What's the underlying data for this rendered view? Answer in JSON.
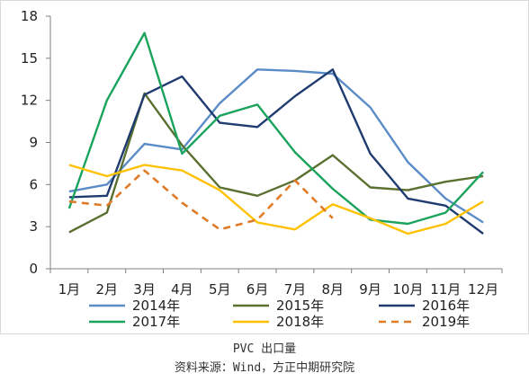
{
  "chart_data": {
    "type": "line",
    "categories": [
      "1月",
      "2月",
      "3月",
      "4月",
      "5月",
      "6月",
      "7月",
      "8月",
      "9月",
      "10月",
      "11月",
      "12月"
    ],
    "ylim": [
      0,
      18
    ],
    "yticks": [
      0,
      3,
      6,
      9,
      12,
      15,
      18
    ],
    "grid": false,
    "legend_position": "bottom",
    "series": [
      {
        "name": "2014年",
        "color": "#5b8cc8",
        "dash": "solid",
        "values": [
          5.5,
          6.0,
          8.9,
          8.5,
          11.8,
          14.2,
          14.1,
          13.9,
          11.5,
          7.6,
          5.0,
          3.3
        ]
      },
      {
        "name": "2015年",
        "color": "#5a7030",
        "dash": "solid",
        "values": [
          2.6,
          4.0,
          12.5,
          8.8,
          5.8,
          5.2,
          6.3,
          8.1,
          5.8,
          5.6,
          6.2,
          6.6
        ]
      },
      {
        "name": "2016年",
        "color": "#1f3b70",
        "dash": "solid",
        "values": [
          5.1,
          5.2,
          12.4,
          13.7,
          10.4,
          10.1,
          12.3,
          14.2,
          8.2,
          5.0,
          4.5,
          2.5
        ]
      },
      {
        "name": "2017年",
        "color": "#1aa35c",
        "dash": "solid",
        "values": [
          4.3,
          12.0,
          16.8,
          8.2,
          10.9,
          11.7,
          8.3,
          5.7,
          3.5,
          3.2,
          4.0,
          6.9
        ]
      },
      {
        "name": "2018年",
        "color": "#ffc000",
        "dash": "solid",
        "values": [
          7.4,
          6.6,
          7.4,
          7.0,
          5.6,
          3.3,
          2.8,
          4.6,
          3.6,
          2.5,
          3.2,
          4.8
        ]
      },
      {
        "name": "2019年",
        "color": "#e07b28",
        "dash": "dashed",
        "values": [
          4.8,
          4.5,
          7.0,
          4.7,
          2.8,
          3.5,
          6.3,
          3.6,
          null,
          null,
          null,
          null
        ]
      }
    ]
  },
  "captions": {
    "title": "PVC 出口量",
    "source": "资料来源：Wind，方正中期研究院"
  }
}
